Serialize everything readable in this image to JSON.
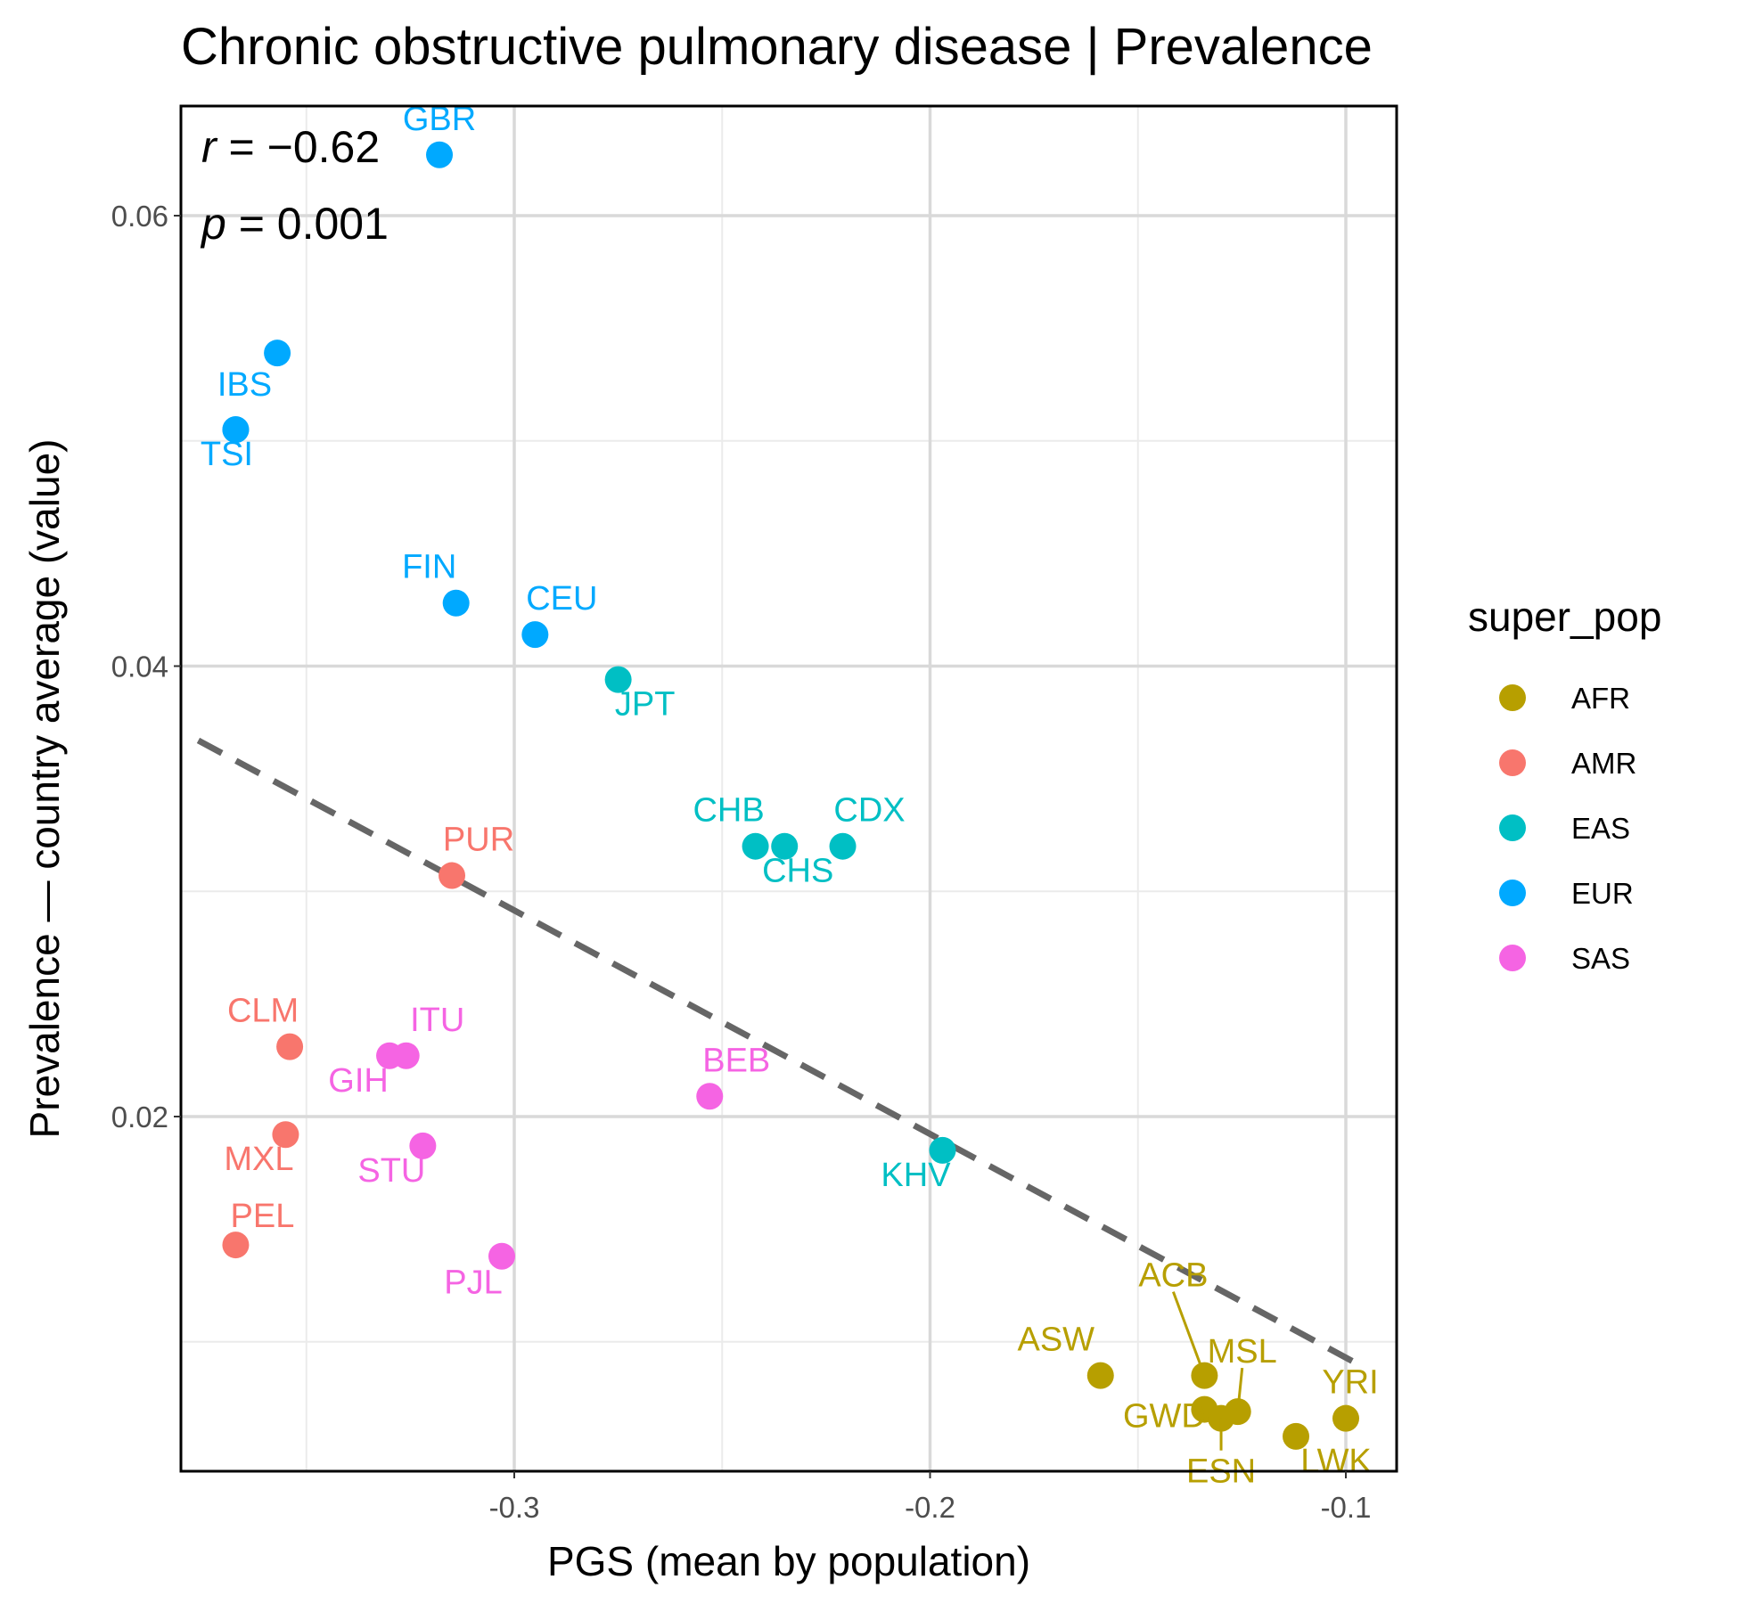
{
  "chart_data": {
    "type": "scatter",
    "title": "Chronic obstructive pulmonary disease | Prevalence",
    "xlabel": "PGS (mean by population)",
    "ylabel": "Prevalence — country average (value)",
    "xlim": [
      -0.357,
      -0.088
    ],
    "ylim": [
      0.0061,
      0.0652
    ],
    "x_ticks": [
      -0.3,
      -0.2,
      -0.1
    ],
    "x_tick_labels": [
      "-0.3",
      "-0.2",
      "-0.1"
    ],
    "y_ticks": [
      0.02,
      0.04,
      0.06
    ],
    "y_tick_labels": [
      "0.02",
      "0.04",
      "0.06"
    ],
    "grid": true,
    "legend": {
      "title": "super_pop",
      "position": "right",
      "entries": [
        {
          "name": "AFR",
          "color": "#B79F00"
        },
        {
          "name": "AMR",
          "color": "#F8766D"
        },
        {
          "name": "EAS",
          "color": "#00BFC4"
        },
        {
          "name": "EUR",
          "color": "#00A9FF"
        },
        {
          "name": "SAS",
          "color": "#F564E3"
        }
      ]
    },
    "annotations": {
      "r_label": "r",
      "r_value": "−0.62",
      "p_label": "p",
      "p_value": "0.001"
    },
    "regression_line": {
      "x": [
        -0.376,
        -0.096
      ],
      "y": [
        0.0367,
        0.0089
      ],
      "style": "dashed",
      "color": "#666666"
    },
    "points": [
      {
        "label": "GBR",
        "super_pop": "EUR",
        "x": -0.318,
        "y": 0.0627,
        "label_dx": 0,
        "label_dy": -28
      },
      {
        "label": "",
        "super_pop": "EUR",
        "x": -0.357,
        "y": 0.0539
      },
      {
        "label": "IBS",
        "super_pop": "EUR",
        "x": -0.367,
        "y": 0.0505,
        "label_dx": 10,
        "label_dy": -38
      },
      {
        "label": "TSI",
        "super_pop": "EUR",
        "x": -0.367,
        "y": 0.0505,
        "label_dx": -10,
        "label_dy": 40
      },
      {
        "label": "FIN",
        "super_pop": "EUR",
        "x": -0.314,
        "y": 0.0428,
        "label_dx": -30,
        "label_dy": -28
      },
      {
        "label": "CEU",
        "super_pop": "EUR",
        "x": -0.295,
        "y": 0.0414,
        "label_dx": 30,
        "label_dy": -28
      },
      {
        "label": "JPT",
        "super_pop": "EAS",
        "x": -0.275,
        "y": 0.0394,
        "label_dx": 30,
        "label_dy": 40
      },
      {
        "label": "CHB",
        "super_pop": "EAS",
        "x": -0.242,
        "y": 0.032,
        "label_dx": -30,
        "label_dy": -28
      },
      {
        "label": "CHS",
        "super_pop": "EAS",
        "x": -0.235,
        "y": 0.032,
        "label_dx": 15,
        "label_dy": 40
      },
      {
        "label": "CDX",
        "super_pop": "EAS",
        "x": -0.221,
        "y": 0.032,
        "label_dx": 30,
        "label_dy": -28
      },
      {
        "label": "KHV",
        "super_pop": "EAS",
        "x": -0.197,
        "y": 0.0185,
        "label_dx": -30,
        "label_dy": 40
      },
      {
        "label": "PUR",
        "super_pop": "AMR",
        "x": -0.315,
        "y": 0.0307,
        "label_dx": 30,
        "label_dy": -28
      },
      {
        "label": "CLM",
        "super_pop": "AMR",
        "x": -0.354,
        "y": 0.0231,
        "label_dx": -30,
        "label_dy": -28
      },
      {
        "label": "MXL",
        "super_pop": "AMR",
        "x": -0.355,
        "y": 0.0192,
        "label_dx": -30,
        "label_dy": 40
      },
      {
        "label": "PEL",
        "super_pop": "AMR",
        "x": -0.367,
        "y": 0.0143,
        "label_dx": 30,
        "label_dy": -20
      },
      {
        "label": "ITU",
        "super_pop": "SAS",
        "x": -0.326,
        "y": 0.0227,
        "label_dx": 35,
        "label_dy": -28
      },
      {
        "label": "GIH",
        "super_pop": "SAS",
        "x": -0.33,
        "y": 0.0227,
        "label_dx": -35,
        "label_dy": 40
      },
      {
        "label": "BEB",
        "super_pop": "SAS",
        "x": -0.253,
        "y": 0.0209,
        "label_dx": 30,
        "label_dy": -28
      },
      {
        "label": "STU",
        "super_pop": "SAS",
        "x": -0.322,
        "y": 0.0187,
        "label_dx": -35,
        "label_dy": 40
      },
      {
        "label": "PJL",
        "super_pop": "SAS",
        "x": -0.303,
        "y": 0.0138,
        "label_dx": -32,
        "label_dy": 42
      },
      {
        "label": "ASW",
        "super_pop": "AFR",
        "x": -0.159,
        "y": 0.0085,
        "label_dx": -50,
        "label_dy": -28
      },
      {
        "label": "ACB",
        "super_pop": "AFR",
        "x": -0.134,
        "y": 0.0085,
        "label_dx": -35,
        "label_dy": -100,
        "leader": true
      },
      {
        "label": "GWD",
        "super_pop": "AFR",
        "x": -0.134,
        "y": 0.007,
        "label_dx": -45,
        "label_dy": 20
      },
      {
        "label": "ESN",
        "super_pop": "AFR",
        "x": -0.13,
        "y": 0.0066,
        "label_dx": 0,
        "label_dy": 72,
        "leader": true
      },
      {
        "label": "MSL",
        "super_pop": "AFR",
        "x": -0.126,
        "y": 0.0069,
        "label_dx": 5,
        "label_dy": -55,
        "leader": true
      },
      {
        "label": "LWK",
        "super_pop": "AFR",
        "x": -0.112,
        "y": 0.0058,
        "label_dx": 45,
        "label_dy": 40
      },
      {
        "label": "YRI",
        "super_pop": "AFR",
        "x": -0.1,
        "y": 0.0066,
        "label_dx": 5,
        "label_dy": -28
      }
    ]
  }
}
